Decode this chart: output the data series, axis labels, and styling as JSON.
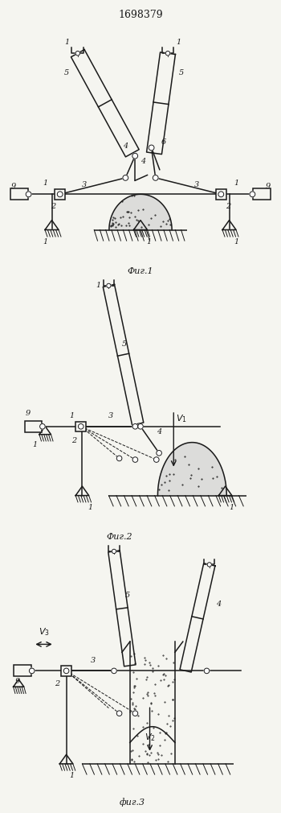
{
  "title": "1698379",
  "fig1_label": "Фиг.1",
  "fig2_label": "Фиг.2",
  "fig3_label": "фиг.3",
  "bg_color": "#f5f5f0",
  "line_color": "#1a1a1a",
  "line_width": 1.1,
  "thin_lw": 0.7
}
